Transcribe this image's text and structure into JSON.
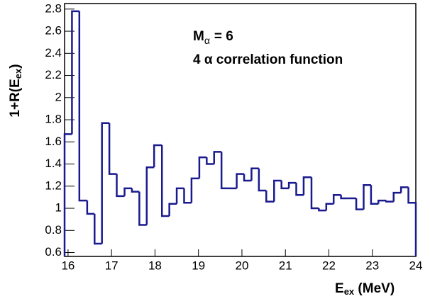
{
  "chart_data": {
    "type": "histogram",
    "annotation": [
      {
        "parts": [
          "M",
          "α",
          "= 6"
        ]
      },
      {
        "parts": [
          "4 α correlation function"
        ]
      }
    ],
    "xlabel": {
      "parts": [
        "E",
        "ex",
        " (MeV)"
      ]
    },
    "ylabel": {
      "parts": [
        "1+R(E",
        "ex",
        ")"
      ]
    },
    "bins": [
      15.92,
      16.09,
      16.26,
      16.44,
      16.61,
      16.78,
      16.95,
      17.12,
      17.3,
      17.47,
      17.64,
      17.81,
      17.98,
      18.16,
      18.33,
      18.5,
      18.67,
      18.84,
      19.02,
      19.19,
      19.36,
      19.53,
      19.7,
      19.88,
      20.05,
      20.22,
      20.39,
      20.56,
      20.74,
      20.91,
      21.08,
      21.25,
      21.42,
      21.6,
      21.77,
      21.94,
      22.11,
      22.28,
      22.46,
      22.63,
      22.8,
      22.97,
      23.14,
      23.32,
      23.49,
      23.66,
      23.83,
      24.0
    ],
    "values": [
      1.67,
      2.78,
      1.07,
      0.95,
      0.68,
      1.77,
      1.31,
      1.11,
      1.18,
      1.15,
      0.85,
      1.37,
      1.57,
      0.93,
      1.04,
      1.18,
      1.05,
      1.27,
      1.46,
      1.4,
      1.51,
      1.18,
      1.18,
      1.31,
      1.25,
      1.36,
      1.16,
      1.06,
      1.25,
      1.18,
      1.23,
      1.12,
      1.28,
      1.0,
      0.98,
      1.04,
      1.12,
      1.09,
      1.09,
      0.99,
      1.21,
      1.04,
      1.07,
      1.06,
      1.14,
      1.19,
      1.05
    ],
    "color": "#1a1a8f",
    "xlim": [
      15.92,
      24.0
    ],
    "xticks": [
      16,
      17,
      18,
      19,
      20,
      21,
      22,
      23,
      24
    ],
    "ylim": [
      0.565,
      2.85
    ],
    "yticks": [
      0.6,
      0.8,
      1,
      1.2,
      1.4,
      1.6,
      1.8,
      2,
      2.2,
      2.4,
      2.6,
      2.8
    ]
  }
}
